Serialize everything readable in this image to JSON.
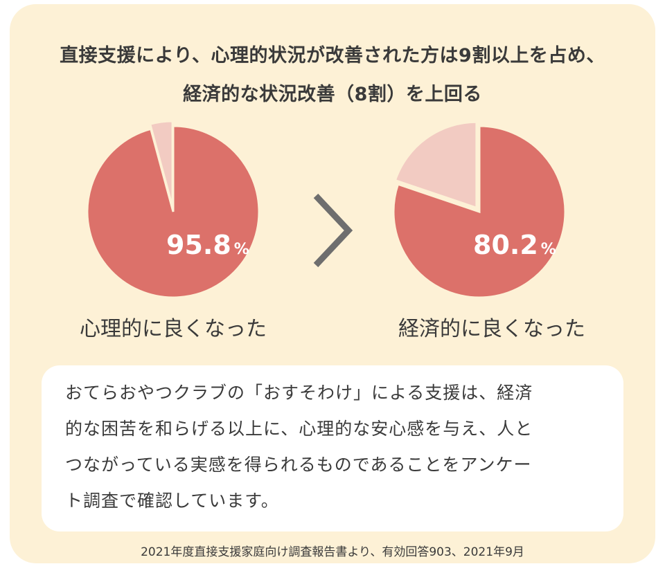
{
  "headline": {
    "line1": "直接支援により、心理的状況が改善された方は9割以上を占め、",
    "line2": "経済的な状況改善（8割）を上回る"
  },
  "comparison_symbol": ">",
  "chart_data": [
    {
      "type": "pie",
      "label": "心理的に良くなった",
      "value_label": "95.8",
      "unit": "%",
      "slices": [
        {
          "value": 95.8,
          "color": "#dc716a"
        },
        {
          "value": 4.2,
          "color": "#f2cbc2"
        }
      ]
    },
    {
      "type": "pie",
      "label": "経済的に良くなった",
      "value_label": "80.2",
      "unit": "%",
      "slices": [
        {
          "value": 80.2,
          "color": "#dc716a"
        },
        {
          "value": 19.8,
          "color": "#f2cbc2"
        }
      ]
    }
  ],
  "note": {
    "lines": [
      "おてらおやつクラブの「おすそわけ」による支援は、経済",
      "的な困苦を和らげる以上に、心理的な安心感を与え、人と",
      "つながっている実感を得られるものであることをアンケー",
      "ト調査で確認しています。"
    ]
  },
  "source": "2021年度直接支援家庭向け調査報告書より、有効回答903、2021年9月",
  "colors": {
    "background": "#fdf1d6",
    "main_slice": "#dc716a",
    "remainder_slice": "#f2cbc2",
    "text": "#3a3a3a",
    "arrow": "#6e6e6e"
  }
}
